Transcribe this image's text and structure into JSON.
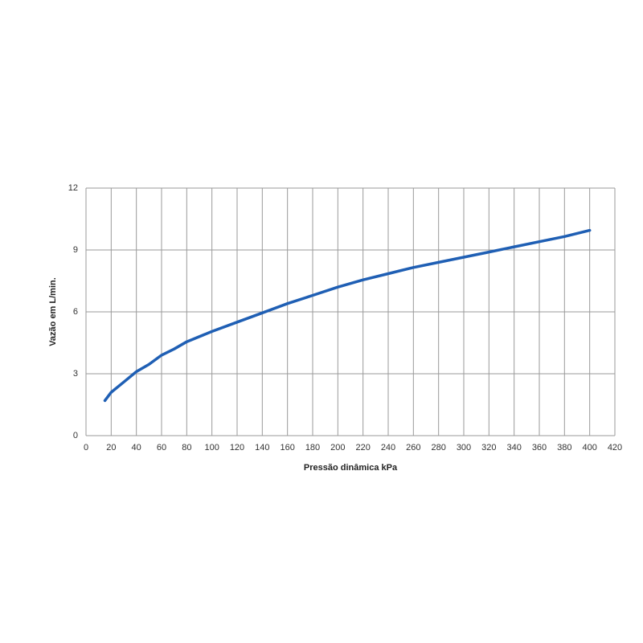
{
  "chart_data": {
    "type": "line",
    "x_label": "Pressão dinâmica kPa",
    "y_label": "Vazão em L/min.",
    "series": [
      {
        "name": "Vazão",
        "color": "#1f5fb4",
        "x": [
          15,
          20,
          30,
          40,
          50,
          60,
          70,
          80,
          100,
          120,
          140,
          160,
          180,
          200,
          220,
          240,
          260,
          280,
          300,
          320,
          340,
          360,
          380,
          400
        ],
        "values": [
          1.7,
          2.1,
          2.6,
          3.1,
          3.45,
          3.9,
          4.2,
          4.55,
          5.05,
          5.5,
          5.95,
          6.4,
          6.8,
          7.2,
          7.55,
          7.85,
          8.15,
          8.4,
          8.65,
          8.9,
          9.15,
          9.4,
          9.65,
          9.95
        ]
      }
    ],
    "xlim": [
      0,
      420
    ],
    "xticks": [
      0,
      20,
      40,
      60,
      80,
      100,
      120,
      140,
      160,
      180,
      200,
      220,
      240,
      260,
      280,
      300,
      320,
      340,
      360,
      380,
      400,
      420
    ],
    "ylim": [
      0,
      12
    ],
    "yticks": [
      0,
      3,
      6,
      9,
      12
    ],
    "grid": true
  }
}
